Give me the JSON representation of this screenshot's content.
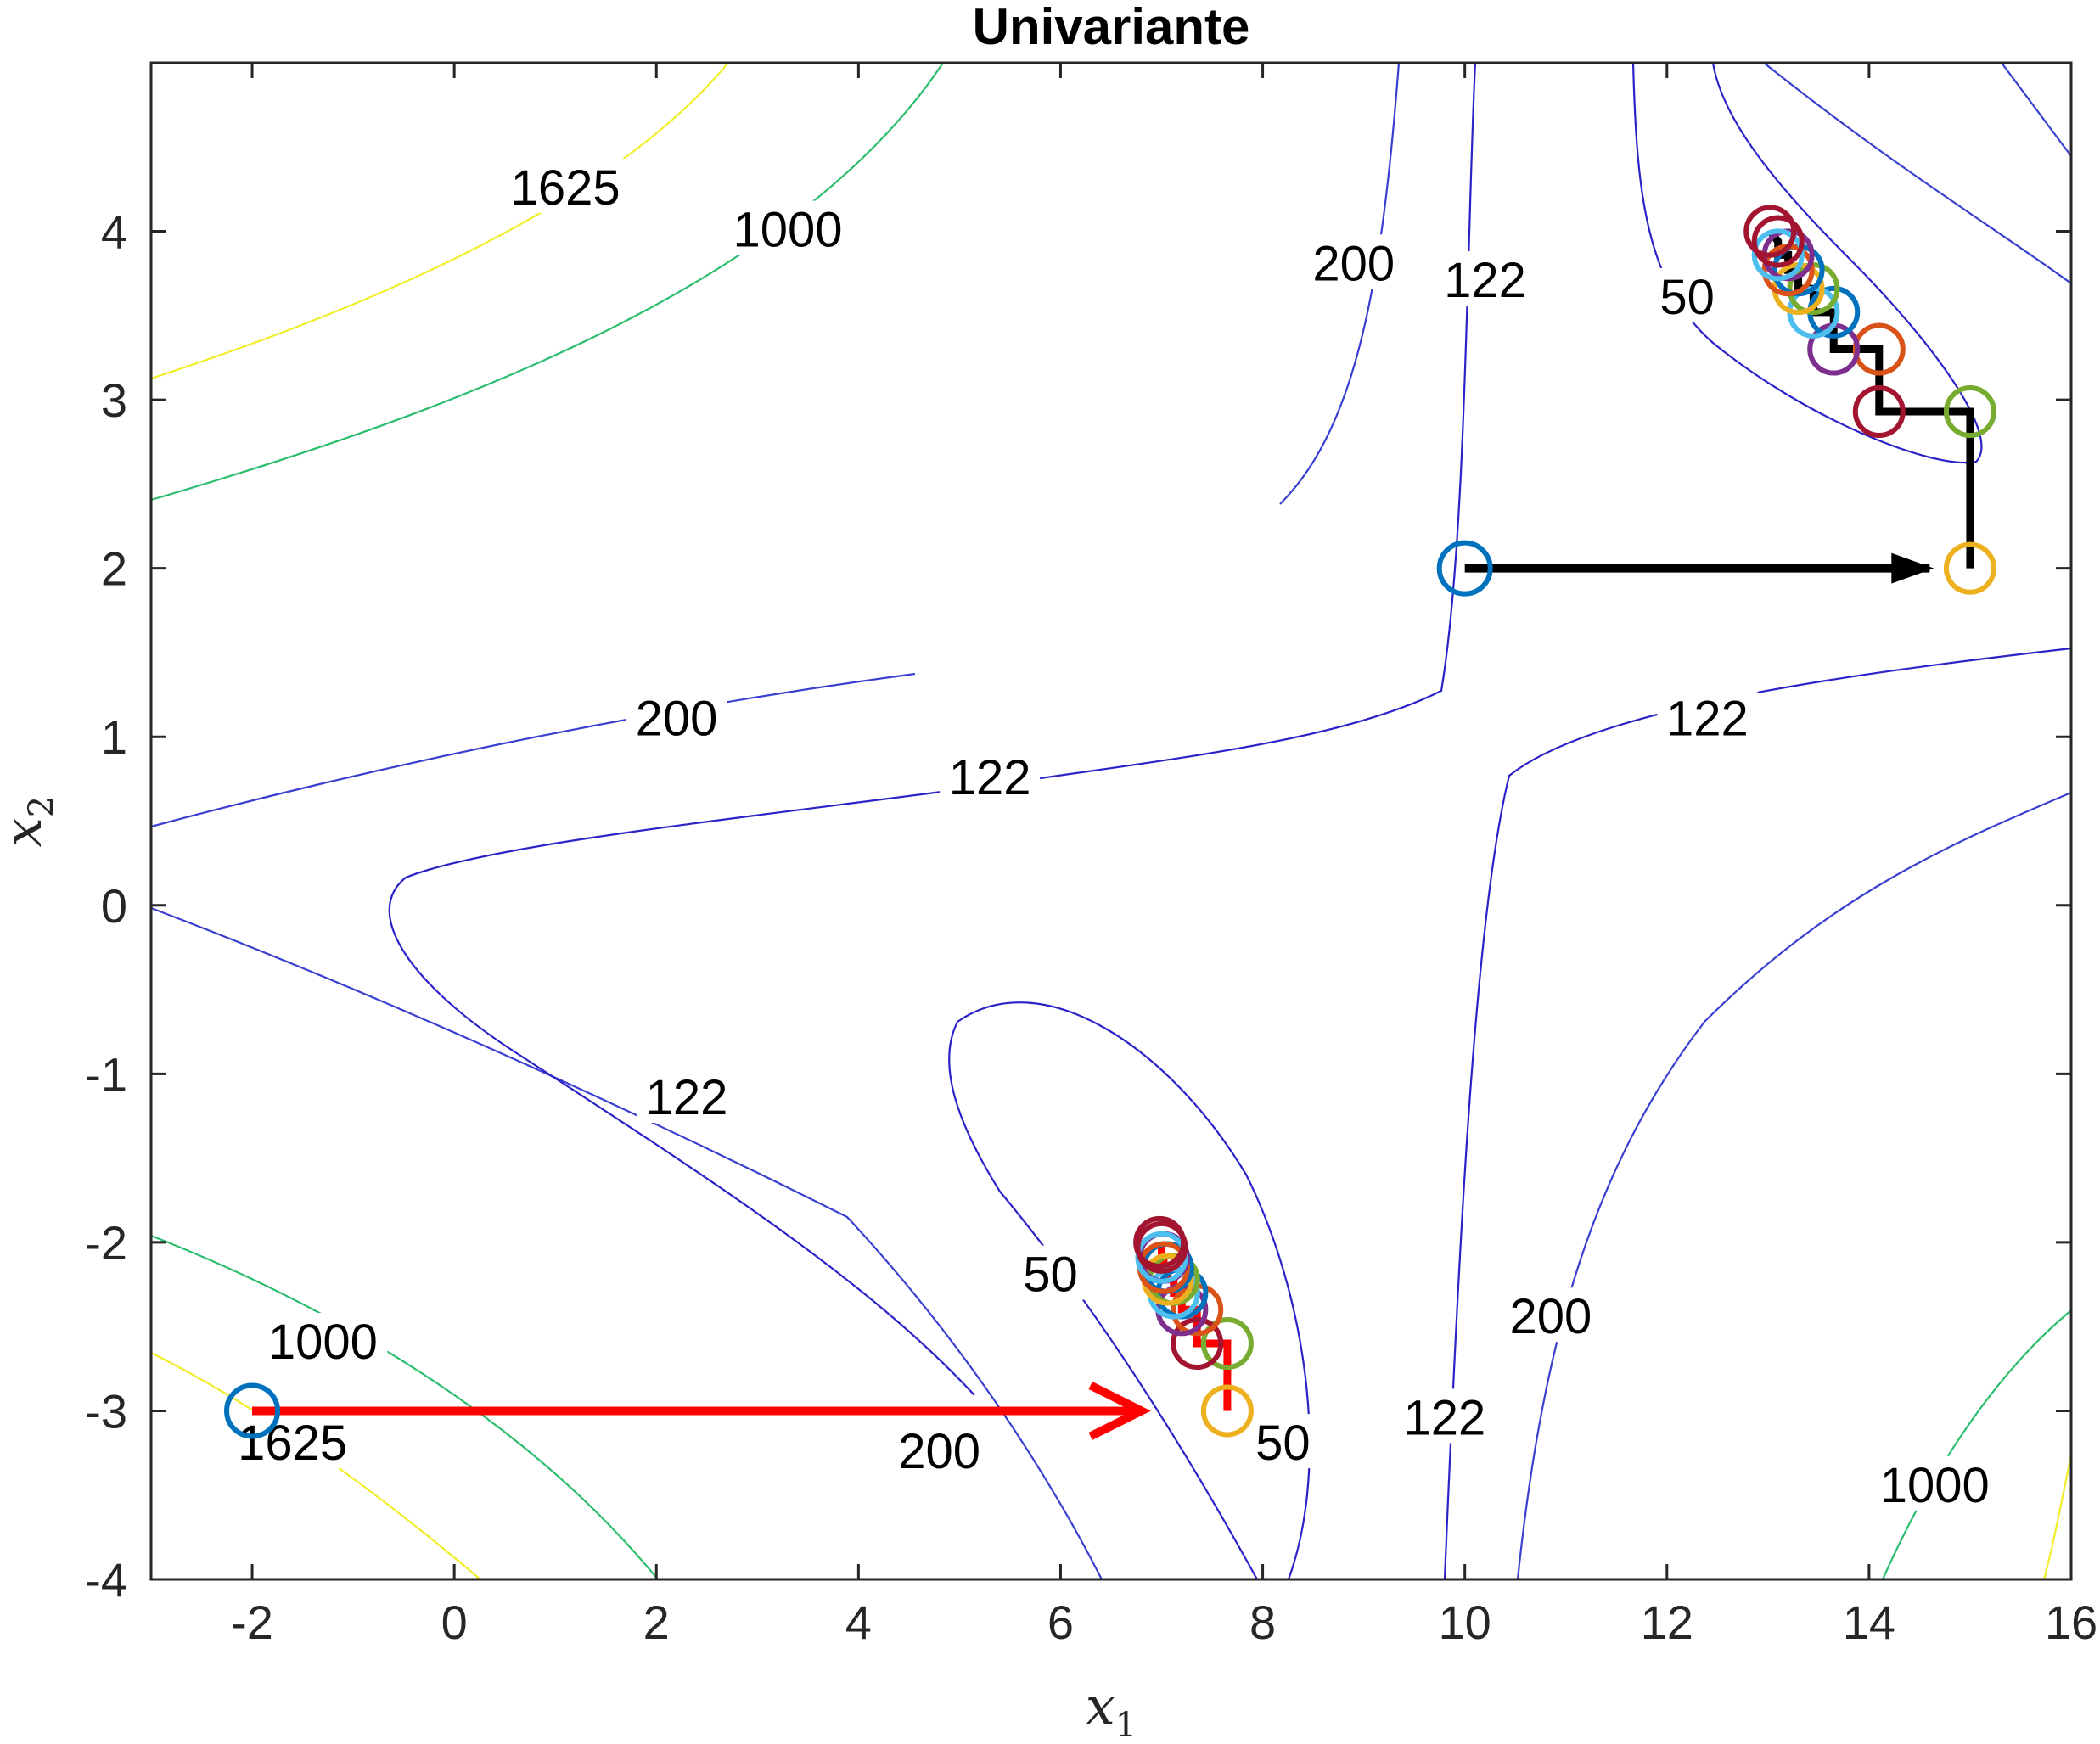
{
  "chart_data": {
    "type": "contour",
    "title": "Univariante",
    "xlabel": "x",
    "xlabel_sub": "1",
    "ylabel": "x",
    "ylabel_sub": "2",
    "xlim": [
      -3,
      16
    ],
    "ylim": [
      -4,
      5
    ],
    "xticks": [
      -2,
      0,
      2,
      4,
      6,
      8,
      10,
      12,
      14,
      16
    ],
    "yticks": [
      -4,
      -3,
      -2,
      -1,
      0,
      1,
      2,
      3,
      4
    ],
    "xtick_labels": [
      "-2",
      "0",
      "2",
      "4",
      "6",
      "8",
      "10",
      "12",
      "14",
      "16"
    ],
    "ytick_labels": [
      "-4",
      "-3",
      "-2",
      "-1",
      "0",
      "1",
      "2",
      "3",
      "4"
    ],
    "grid": false,
    "contour_levels": [
      {
        "level": 50,
        "color": "#2b22c8"
      },
      {
        "level": 122,
        "color": "#2b22c8"
      },
      {
        "level": 200,
        "color": "#3a3fd0"
      },
      {
        "level": 1000,
        "color": "#2bbd6e"
      },
      {
        "level": 1625,
        "color": "#f0ee2a"
      }
    ],
    "contour_labels": [
      {
        "text": "1625",
        "x": 1.1,
        "y": 4.25
      },
      {
        "text": "1000",
        "x": 3.3,
        "y": 4.0
      },
      {
        "text": "200",
        "x": 8.9,
        "y": 3.8
      },
      {
        "text": "122",
        "x": 10.2,
        "y": 3.7
      },
      {
        "text": "50",
        "x": 12.2,
        "y": 3.6
      },
      {
        "text": "200",
        "x": 2.2,
        "y": 1.1
      },
      {
        "text": "122",
        "x": 5.3,
        "y": 0.75
      },
      {
        "text": "122",
        "x": 12.4,
        "y": 1.1
      },
      {
        "text": "122",
        "x": 2.3,
        "y": -1.15
      },
      {
        "text": "50",
        "x": 5.9,
        "y": -2.2
      },
      {
        "text": "1000",
        "x": -1.3,
        "y": -2.6
      },
      {
        "text": "1625",
        "x": -1.6,
        "y": -3.2
      },
      {
        "text": "200",
        "x": 4.8,
        "y": -3.25
      },
      {
        "text": "50",
        "x": 8.2,
        "y": -3.2
      },
      {
        "text": "122",
        "x": 9.8,
        "y": -3.05
      },
      {
        "text": "200",
        "x": 10.85,
        "y": -2.45
      },
      {
        "text": "1000",
        "x": 14.65,
        "y": -3.45
      }
    ],
    "start_points": [
      {
        "x": -2,
        "y": -3,
        "color": "#0072bd"
      },
      {
        "x": 10,
        "y": 2,
        "color": "#0072bd"
      }
    ],
    "arrows": [
      {
        "x0": -2,
        "y0": -3,
        "x1": 6.8,
        "y1": -3,
        "color": "#ff0000"
      },
      {
        "x0": 10,
        "y0": 2,
        "x1": 14.6,
        "y1": 2,
        "color": "#000000"
      }
    ],
    "series": [
      {
        "path_color": "#ff0000",
        "iterates": [
          {
            "x": 7.65,
            "y": -3.0,
            "color": "#edb120"
          },
          {
            "x": 7.65,
            "y": -2.6,
            "color": "#77ac30"
          },
          {
            "x": 7.35,
            "y": -2.6,
            "color": "#a2142f"
          },
          {
            "x": 7.35,
            "y": -2.4,
            "color": "#d95319"
          },
          {
            "x": 7.2,
            "y": -2.4,
            "color": "#7e2f8e"
          },
          {
            "x": 7.2,
            "y": -2.3,
            "color": "#0072bd"
          },
          {
            "x": 7.12,
            "y": -2.3,
            "color": "#4dbeee"
          },
          {
            "x": 7.12,
            "y": -2.22,
            "color": "#77ac30"
          },
          {
            "x": 7.06,
            "y": -2.22,
            "color": "#edb120"
          },
          {
            "x": 7.06,
            "y": -2.15,
            "color": "#0072bd"
          },
          {
            "x": 7.02,
            "y": -2.15,
            "color": "#d95319"
          },
          {
            "x": 7.02,
            "y": -2.09,
            "color": "#7e2f8e"
          },
          {
            "x": 7.0,
            "y": -2.09,
            "color": "#4dbeee"
          },
          {
            "x": 7.0,
            "y": -2.03,
            "color": "#a2142f"
          },
          {
            "x": 6.98,
            "y": -2.0,
            "color": "#a2142f"
          }
        ]
      },
      {
        "path_color": "#000000",
        "iterates": [
          {
            "x": 15.0,
            "y": 2.0,
            "color": "#edb120"
          },
          {
            "x": 15.0,
            "y": 2.93,
            "color": "#77ac30"
          },
          {
            "x": 14.1,
            "y": 2.93,
            "color": "#a2142f"
          },
          {
            "x": 14.1,
            "y": 3.3,
            "color": "#d95319"
          },
          {
            "x": 13.65,
            "y": 3.3,
            "color": "#7e2f8e"
          },
          {
            "x": 13.65,
            "y": 3.52,
            "color": "#0072bd"
          },
          {
            "x": 13.45,
            "y": 3.52,
            "color": "#4dbeee"
          },
          {
            "x": 13.45,
            "y": 3.66,
            "color": "#77ac30"
          },
          {
            "x": 13.3,
            "y": 3.66,
            "color": "#edb120"
          },
          {
            "x": 13.3,
            "y": 3.77,
            "color": "#0072bd"
          },
          {
            "x": 13.2,
            "y": 3.77,
            "color": "#d95319"
          },
          {
            "x": 13.2,
            "y": 3.86,
            "color": "#7e2f8e"
          },
          {
            "x": 13.1,
            "y": 3.86,
            "color": "#4dbeee"
          },
          {
            "x": 13.1,
            "y": 3.94,
            "color": "#a2142f"
          },
          {
            "x": 13.02,
            "y": 4.0,
            "color": "#a2142f"
          }
        ]
      }
    ]
  }
}
